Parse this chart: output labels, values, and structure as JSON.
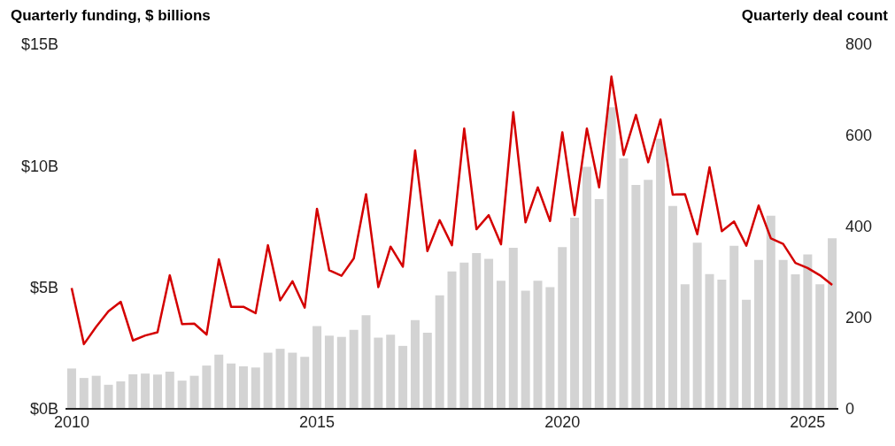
{
  "chart_data": {
    "type": "bar",
    "ylabel": "Quarterly funding, $ billions",
    "y2label": "Quarterly deal count",
    "categories": [
      "2010",
      null,
      null,
      null,
      null,
      null,
      null,
      null,
      null,
      null,
      null,
      null,
      null,
      null,
      null,
      null,
      null,
      null,
      null,
      null,
      "2015",
      null,
      null,
      null,
      null,
      null,
      null,
      null,
      null,
      null,
      null,
      null,
      null,
      null,
      null,
      null,
      null,
      null,
      null,
      null,
      "2020",
      null,
      null,
      null,
      null,
      null,
      null,
      null,
      null,
      null,
      null,
      null,
      null,
      null,
      null,
      null,
      null,
      null,
      null,
      null,
      "2025",
      null,
      null
    ],
    "series": [
      {
        "color": "#d3d3d3",
        "values": [
          1.66,
          1.27,
          1.36,
          0.99,
          1.13,
          1.42,
          1.45,
          1.41,
          1.53,
          1.16,
          1.36,
          1.78,
          2.23,
          1.87,
          1.75,
          1.7,
          2.31,
          2.47,
          2.31,
          2.14,
          3.4,
          3.01,
          2.96,
          3.25,
          3.85,
          2.93,
          3.05,
          2.59,
          3.65,
          3.13,
          4.67,
          5.65,
          6.02,
          6.41,
          6.17,
          5.27,
          6.63,
          4.86,
          5.27,
          5.01,
          6.65,
          7.86,
          9.96,
          8.63,
          12.41,
          10.3,
          9.21,
          9.42,
          11.11,
          8.35,
          5.12,
          6.84,
          5.54,
          5.32,
          6.71,
          4.49,
          6.13,
          7.95,
          6.13,
          5.53,
          6.35,
          5.12,
          7.02
        ]
      },
      {
        "type": "line",
        "axis": "y2",
        "color": "#d40000",
        "values": [
          265,
          142,
          180,
          214,
          235,
          150,
          161,
          168,
          293,
          186,
          187,
          163,
          328,
          224,
          224,
          210,
          359,
          238,
          280,
          222,
          439,
          304,
          292,
          330,
          471,
          267,
          356,
          312,
          567,
          346,
          414,
          359,
          615,
          394,
          425,
          361,
          651,
          409,
          486,
          412,
          607,
          425,
          615,
          486,
          729,
          557,
          645,
          541,
          635,
          470,
          471,
          383,
          530,
          390,
          411,
          358,
          446,
          374,
          362,
          320,
          309,
          293,
          272
        ]
      }
    ],
    "ylim": [
      0,
      15
    ],
    "yticks": [
      {
        "value": 0,
        "label": "$0B"
      },
      {
        "value": 5,
        "label": "$5B"
      },
      {
        "value": 10,
        "label": "$10B"
      },
      {
        "value": 15,
        "label": "$15B"
      }
    ],
    "y2lim": [
      0,
      800
    ],
    "y2ticks": [
      0,
      200,
      400,
      600,
      800
    ],
    "grid": false,
    "legend": false,
    "marker": "none",
    "line_style": "solid"
  }
}
